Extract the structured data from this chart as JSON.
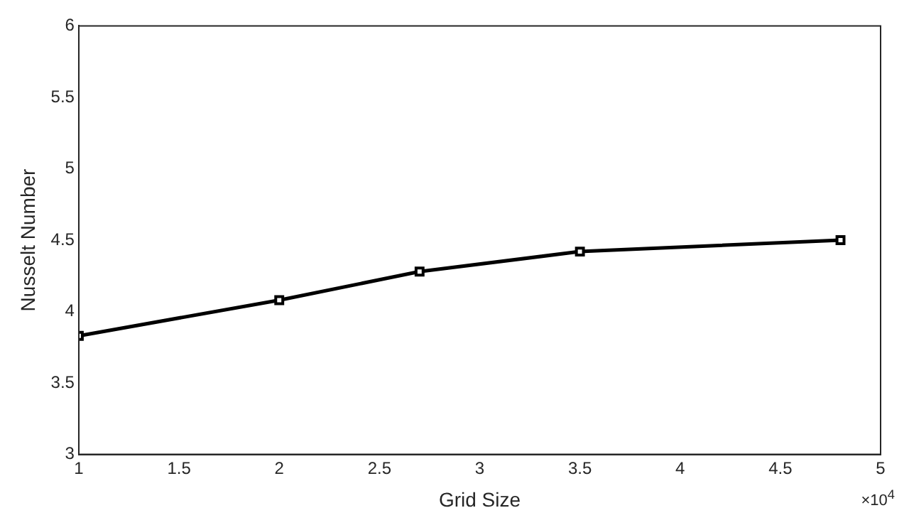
{
  "chart_data": {
    "type": "line",
    "xlabel": "Grid Size",
    "ylabel": "Nusselt Number",
    "x": [
      1,
      2,
      2.7,
      3.5,
      4.8
    ],
    "series": [
      {
        "color": "#000000",
        "values": [
          3.83,
          4.08,
          4.28,
          4.42,
          4.5
        ]
      }
    ],
    "xlim": [
      1,
      5
    ],
    "xticks": [
      1,
      1.5,
      2,
      2.5,
      3,
      3.5,
      4,
      4.5,
      5
    ],
    "ylim": [
      3,
      6
    ],
    "yticks": [
      3,
      3.5,
      4,
      4.5,
      5,
      5.5,
      6
    ],
    "grid": false,
    "legend": false,
    "marker": "square",
    "line_style": "solid",
    "annotations": [
      "×10$^{4}$"
    ]
  }
}
